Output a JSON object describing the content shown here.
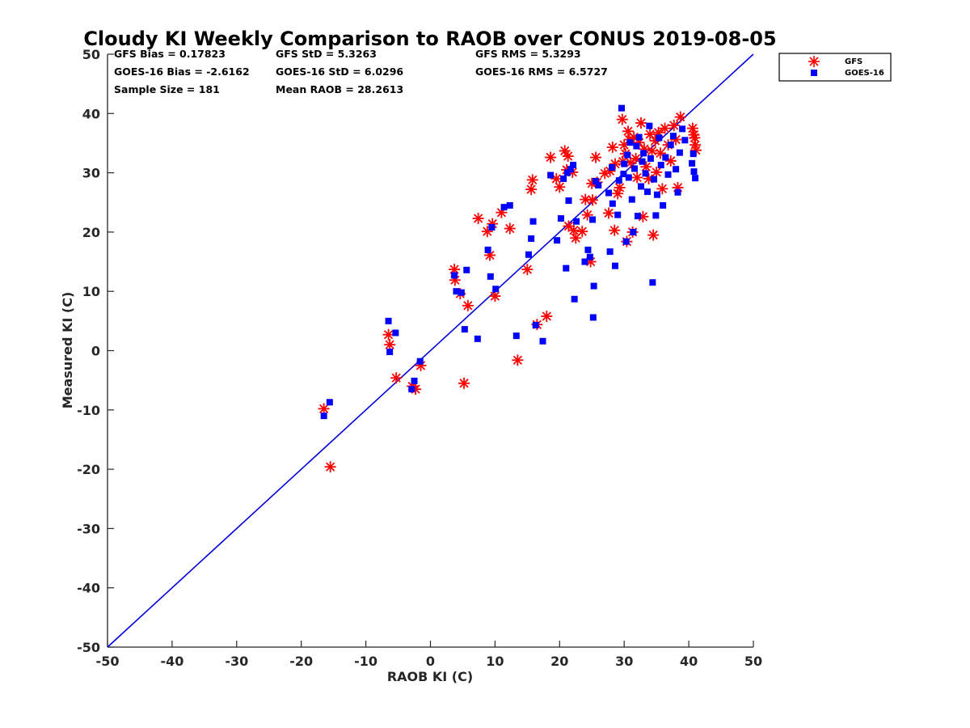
{
  "chart_data": {
    "type": "scatter",
    "title": "Cloudy KI Weekly Comparison to RAOB over CONUS 2019-08-05",
    "xlabel": "RAOB KI (C)",
    "ylabel": "Measured KI (C)",
    "xlim": [
      -50,
      50
    ],
    "ylim": [
      -50,
      50
    ],
    "xticks": [
      "-50",
      "-40",
      "-30",
      "-20",
      "-10",
      "0",
      "10",
      "20",
      "30",
      "40",
      "50"
    ],
    "yticks": [
      "50",
      "40",
      "30",
      "20",
      "10",
      "0",
      "-10",
      "-20",
      "-30",
      "-40",
      "-50"
    ],
    "grid": false,
    "legend_position": "top-right, outside plot",
    "reference_line": {
      "description": "1:1 line",
      "color": "#0000dd",
      "from": [
        -50,
        -50
      ],
      "to": [
        50,
        50
      ]
    },
    "stats": {
      "row1": [
        "GFS Bias = 0.17823",
        "GFS StD = 5.3263",
        "GFS RMS = 5.3293"
      ],
      "row2": [
        "GOES-16 Bias = -2.6162",
        "GOES-16 StD = 6.0296",
        "GOES-16 RMS = 6.5727"
      ],
      "row3": [
        "Sample Size = 181",
        "Mean RAOB = 28.2613"
      ]
    },
    "series": [
      {
        "name": "GFS",
        "marker": "asterisk",
        "color": "#ff0000",
        "points": [
          [
            -16.5,
            -9.8
          ],
          [
            -15.5,
            -19.6
          ],
          [
            -6.5,
            2.7
          ],
          [
            -6.3,
            1.0
          ],
          [
            -5.3,
            -4.6
          ],
          [
            -2.8,
            -6.0
          ],
          [
            -2.3,
            -6.5
          ],
          [
            -1.5,
            -2.5
          ],
          [
            3.7,
            13.7
          ],
          [
            3.8,
            11.9
          ],
          [
            4.6,
            9.6
          ],
          [
            5.2,
            -5.5
          ],
          [
            5.8,
            7.6
          ],
          [
            7.4,
            22.3
          ],
          [
            8.8,
            20.1
          ],
          [
            9.2,
            16.1
          ],
          [
            9.6,
            21.4
          ],
          [
            10.0,
            9.2
          ],
          [
            11.0,
            23.3
          ],
          [
            12.3,
            20.6
          ],
          [
            13.5,
            -1.6
          ],
          [
            15.0,
            13.7
          ],
          [
            15.6,
            27.2
          ],
          [
            15.8,
            28.8
          ],
          [
            16.5,
            4.4
          ],
          [
            18.0,
            5.8
          ],
          [
            18.6,
            32.6
          ],
          [
            19.5,
            29.0
          ],
          [
            20.0,
            27.6
          ],
          [
            20.8,
            33.7
          ],
          [
            21.3,
            32.8
          ],
          [
            21.1,
            30.5
          ],
          [
            21.4,
            21.0
          ],
          [
            22.0,
            30.1
          ],
          [
            22.2,
            20.3
          ],
          [
            22.5,
            19.0
          ],
          [
            23.5,
            20.1
          ],
          [
            24.0,
            25.5
          ],
          [
            24.3,
            22.9
          ],
          [
            24.8,
            15.0
          ],
          [
            25.0,
            28.2
          ],
          [
            25.1,
            25.4
          ],
          [
            25.6,
            32.6
          ],
          [
            25.8,
            28.4
          ],
          [
            27.0,
            29.9
          ],
          [
            27.6,
            23.2
          ],
          [
            27.8,
            30.3
          ],
          [
            28.2,
            34.3
          ],
          [
            28.5,
            20.3
          ],
          [
            28.6,
            31.5
          ],
          [
            29.0,
            26.5
          ],
          [
            29.3,
            27.5
          ],
          [
            29.7,
            39.0
          ],
          [
            29.8,
            31.9
          ],
          [
            30.0,
            34.7
          ],
          [
            30.2,
            33.2
          ],
          [
            30.4,
            18.4
          ],
          [
            30.6,
            37.0
          ],
          [
            30.8,
            35.6
          ],
          [
            31.0,
            31.7
          ],
          [
            31.3,
            20.0
          ],
          [
            31.5,
            36.0
          ],
          [
            31.8,
            32.4
          ],
          [
            32.0,
            29.2
          ],
          [
            32.3,
            35.1
          ],
          [
            32.6,
            38.4
          ],
          [
            32.9,
            22.6
          ],
          [
            33.1,
            34.0
          ],
          [
            33.4,
            31.0
          ],
          [
            33.8,
            29.0
          ],
          [
            34.0,
            36.5
          ],
          [
            34.3,
            33.7
          ],
          [
            34.5,
            19.5
          ],
          [
            34.8,
            35.4
          ],
          [
            35.0,
            30.1
          ],
          [
            35.3,
            36.8
          ],
          [
            35.6,
            33.3
          ],
          [
            35.9,
            27.3
          ],
          [
            36.3,
            37.5
          ],
          [
            36.8,
            34.7
          ],
          [
            37.2,
            32.0
          ],
          [
            37.7,
            38.0
          ],
          [
            38.0,
            35.6
          ],
          [
            38.3,
            27.5
          ],
          [
            38.7,
            39.4
          ],
          [
            40.6,
            37.5
          ],
          [
            40.8,
            36.4
          ],
          [
            41.0,
            34.7
          ],
          [
            41.1,
            33.8
          ],
          [
            40.9,
            35.9
          ]
        ]
      },
      {
        "name": "GOES-16",
        "marker": "square",
        "color": "#0000ff",
        "points": [
          [
            -16.5,
            -11.0
          ],
          [
            -15.6,
            -8.7
          ],
          [
            -6.5,
            5.0
          ],
          [
            -6.3,
            -0.2
          ],
          [
            -5.4,
            3.0
          ],
          [
            -2.9,
            -6.5
          ],
          [
            -2.5,
            -5.1
          ],
          [
            -1.6,
            -1.8
          ],
          [
            3.7,
            12.7
          ],
          [
            4.0,
            10.0
          ],
          [
            4.8,
            9.8
          ],
          [
            5.3,
            3.6
          ],
          [
            5.6,
            13.6
          ],
          [
            7.3,
            2.0
          ],
          [
            8.9,
            17.0
          ],
          [
            9.3,
            12.5
          ],
          [
            9.5,
            20.8
          ],
          [
            10.1,
            10.4
          ],
          [
            11.4,
            24.2
          ],
          [
            12.3,
            24.5
          ],
          [
            13.3,
            2.5
          ],
          [
            15.2,
            16.2
          ],
          [
            15.6,
            18.9
          ],
          [
            15.9,
            21.8
          ],
          [
            16.3,
            4.3
          ],
          [
            17.4,
            1.6
          ],
          [
            18.6,
            29.6
          ],
          [
            19.6,
            18.6
          ],
          [
            20.2,
            22.3
          ],
          [
            20.6,
            29.0
          ],
          [
            21.0,
            13.9
          ],
          [
            21.2,
            30.0
          ],
          [
            21.4,
            25.3
          ],
          [
            21.7,
            30.6
          ],
          [
            22.1,
            31.3
          ],
          [
            22.3,
            8.7
          ],
          [
            22.6,
            21.8
          ],
          [
            23.9,
            15.0
          ],
          [
            24.4,
            17.0
          ],
          [
            24.7,
            15.8
          ],
          [
            25.1,
            22.1
          ],
          [
            25.3,
            10.9
          ],
          [
            25.2,
            5.6
          ],
          [
            25.6,
            28.6
          ],
          [
            26.0,
            27.9
          ],
          [
            27.6,
            26.6
          ],
          [
            27.8,
            16.7
          ],
          [
            28.1,
            30.9
          ],
          [
            28.2,
            24.8
          ],
          [
            28.6,
            14.3
          ],
          [
            29.0,
            22.9
          ],
          [
            29.2,
            28.7
          ],
          [
            29.6,
            40.9
          ],
          [
            29.9,
            29.8
          ],
          [
            30.0,
            31.5
          ],
          [
            30.3,
            18.4
          ],
          [
            30.5,
            33.0
          ],
          [
            30.7,
            29.2
          ],
          [
            30.9,
            35.1
          ],
          [
            31.2,
            25.5
          ],
          [
            31.4,
            20.0
          ],
          [
            31.6,
            30.7
          ],
          [
            31.9,
            34.5
          ],
          [
            32.1,
            22.7
          ],
          [
            32.3,
            36.0
          ],
          [
            32.6,
            27.7
          ],
          [
            32.8,
            31.9
          ],
          [
            33.0,
            33.3
          ],
          [
            33.3,
            29.9
          ],
          [
            33.6,
            26.8
          ],
          [
            33.9,
            37.9
          ],
          [
            34.1,
            32.4
          ],
          [
            34.4,
            11.5
          ],
          [
            34.6,
            28.9
          ],
          [
            34.9,
            22.8
          ],
          [
            35.1,
            26.3
          ],
          [
            35.4,
            35.9
          ],
          [
            35.7,
            31.3
          ],
          [
            36.0,
            24.5
          ],
          [
            36.4,
            32.6
          ],
          [
            36.8,
            29.7
          ],
          [
            37.2,
            34.7
          ],
          [
            37.6,
            36.2
          ],
          [
            38.0,
            30.6
          ],
          [
            38.3,
            26.7
          ],
          [
            38.6,
            33.4
          ],
          [
            39.0,
            37.4
          ],
          [
            39.4,
            35.5
          ],
          [
            40.5,
            31.6
          ],
          [
            40.7,
            33.2
          ],
          [
            40.8,
            30.2
          ],
          [
            41.0,
            29.1
          ]
        ]
      }
    ]
  }
}
